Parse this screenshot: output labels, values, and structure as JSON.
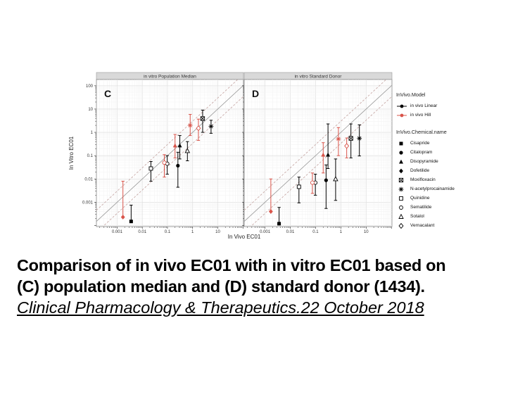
{
  "caption": {
    "line1": "Comparison of in vivo EC01 with in vitro EC01 based on",
    "line2": "(C) population median and (D) standard donor (1434).",
    "line3": "Clinical Pharmacology & Therapeutics.22 October 2018"
  },
  "legend": {
    "model_title": "InVivo.Model",
    "model_items": [
      {
        "label": "in vivo Linear",
        "color": "#000000"
      },
      {
        "label": "in vivo Hill",
        "color": "#d9544a"
      }
    ],
    "chemical_title": "InVivo.Chemical.name",
    "chemical_items": [
      {
        "label": "Cisapride",
        "symbol": "square-filled"
      },
      {
        "label": "Citalopram",
        "symbol": "circle-filled"
      },
      {
        "label": "Disopyramide",
        "symbol": "triangle-filled"
      },
      {
        "label": "Dofetilide",
        "symbol": "diamond-filled"
      },
      {
        "label": "Moxifloxacin",
        "symbol": "square-x"
      },
      {
        "label": "N-acetylprocainamide",
        "symbol": "asterisk"
      },
      {
        "label": "Quinidine",
        "symbol": "square-open"
      },
      {
        "label": "Sematilide",
        "symbol": "circle-open"
      },
      {
        "label": "Sotalol",
        "symbol": "triangle-open"
      },
      {
        "label": "Vernacalant",
        "symbol": "diamond-open"
      }
    ]
  },
  "chart_data": {
    "type": "scatter",
    "xlabel": "In Vivo EC01",
    "ylabel": "In Vitro EC01",
    "xscale": "log",
    "yscale": "log",
    "xlim": [
      0.00015,
      105
    ],
    "ylim": [
      9e-05,
      185
    ],
    "xticks": [
      0.001,
      0.01,
      0.1,
      1,
      10
    ],
    "yticks": [
      100,
      10,
      1,
      0.1,
      0.01,
      0.001
    ],
    "grid": "log minor + major, light gray",
    "identity_line": true,
    "dashed_factors": [
      3,
      0.3333
    ],
    "colors": {
      "linear": "#000000",
      "hill": "#d9544a",
      "dashed": "#c4a3a0",
      "identity": "#999999"
    },
    "panels": [
      {
        "letter": "C",
        "title": "in vitro Population Median",
        "points": [
          {
            "chemical": "Cisapride",
            "model": "Linear",
            "x": 0.0036,
            "y": 0.00015,
            "ylo": 0.00015,
            "yhi": 0.00075
          },
          {
            "chemical": "Quinidine",
            "model": "Linear",
            "x": 0.022,
            "y": 0.028,
            "ylo": 0.008,
            "yhi": 0.056
          },
          {
            "chemical": "Sematilide",
            "model": "Linear",
            "x": 0.098,
            "y": 0.045,
            "ylo": 0.016,
            "yhi": 0.1
          },
          {
            "chemical": "Citalopram",
            "model": "Linear",
            "x": 0.26,
            "y": 0.037,
            "ylo": 0.0044,
            "yhi": 0.14
          },
          {
            "chemical": "Disopyramide",
            "model": "Linear",
            "x": 0.31,
            "y": 0.27,
            "ylo": 0.072,
            "yhi": 0.73
          },
          {
            "chemical": "Sotalol",
            "model": "Linear",
            "x": 0.62,
            "y": 0.16,
            "ylo": 0.06,
            "yhi": 0.4
          },
          {
            "chemical": "Moxifloxacin",
            "model": "Linear",
            "x": 2.5,
            "y": 3.9,
            "ylo": 1.0,
            "yhi": 9.0
          },
          {
            "chemical": "N-acetylprocainamide",
            "model": "Linear",
            "x": 5.4,
            "y": 1.8,
            "ylo": 0.91,
            "yhi": 3.3
          },
          {
            "chemical": "Dofetilide",
            "model": "Hill",
            "x": 0.0017,
            "y": 0.00023,
            "ylo": 0.00023,
            "yhi": 0.008
          },
          {
            "chemical": "Sematilide",
            "model": "Hill",
            "x": 0.075,
            "y": 0.05,
            "ylo": 0.012,
            "yhi": 0.11
          },
          {
            "chemical": "Disopyramide",
            "model": "Hill",
            "x": 0.2,
            "y": 0.27,
            "ylo": 0.08,
            "yhi": 0.81
          },
          {
            "chemical": "N-acetylprocainamide",
            "model": "Hill",
            "x": 0.8,
            "y": 2.0,
            "ylo": 0.73,
            "yhi": 5.9
          },
          {
            "chemical": "Vernacalant",
            "model": "Hill",
            "x": 1.7,
            "y": 1.5,
            "ylo": 0.45,
            "yhi": 3.7
          }
        ]
      },
      {
        "letter": "D",
        "title": "in vitro Standard Donor",
        "points": [
          {
            "chemical": "Cisapride",
            "model": "Linear",
            "x": 0.0036,
            "y": 0.00012,
            "ylo": 0.00012,
            "yhi": 0.0006
          },
          {
            "chemical": "Quinidine",
            "model": "Linear",
            "x": 0.022,
            "y": 0.0046,
            "ylo": 0.00094,
            "yhi": 0.012
          },
          {
            "chemical": "Sematilide",
            "model": "Linear",
            "x": 0.098,
            "y": 0.0069,
            "ylo": 0.002,
            "yhi": 0.016
          },
          {
            "chemical": "Citalopram",
            "model": "Linear",
            "x": 0.26,
            "y": 0.0088,
            "ylo": 0.00054,
            "yhi": 0.04
          },
          {
            "chemical": "Disopyramide",
            "model": "Linear",
            "x": 0.31,
            "y": 0.108,
            "ylo": 0.028,
            "yhi": 2.3
          },
          {
            "chemical": "Sotalol",
            "model": "Linear",
            "x": 0.62,
            "y": 0.0099,
            "ylo": 0.0012,
            "yhi": 0.072
          },
          {
            "chemical": "Moxifloxacin",
            "model": "Linear",
            "x": 2.5,
            "y": 0.55,
            "ylo": 0.08,
            "yhi": 2.3
          },
          {
            "chemical": "N-acetylprocainamide",
            "model": "Linear",
            "x": 5.4,
            "y": 0.55,
            "ylo": 0.097,
            "yhi": 2.1
          },
          {
            "chemical": "Dofetilide",
            "model": "Hill",
            "x": 0.0017,
            "y": 0.0004,
            "ylo": 0.0004,
            "yhi": 0.01
          },
          {
            "chemical": "Sematilide",
            "model": "Hill",
            "x": 0.075,
            "y": 0.0069,
            "ylo": 0.0024,
            "yhi": 0.018
          },
          {
            "chemical": "Disopyramide",
            "model": "Hill",
            "x": 0.2,
            "y": 0.108,
            "ylo": 0.018,
            "yhi": 0.36
          },
          {
            "chemical": "N-acetylprocainamide",
            "model": "Hill",
            "x": 0.8,
            "y": 0.52,
            "ylo": 0.1,
            "yhi": 1.6
          },
          {
            "chemical": "Vernacalant",
            "model": "Hill",
            "x": 1.7,
            "y": 0.26,
            "ylo": 0.08,
            "yhi": 0.57
          }
        ]
      }
    ]
  }
}
